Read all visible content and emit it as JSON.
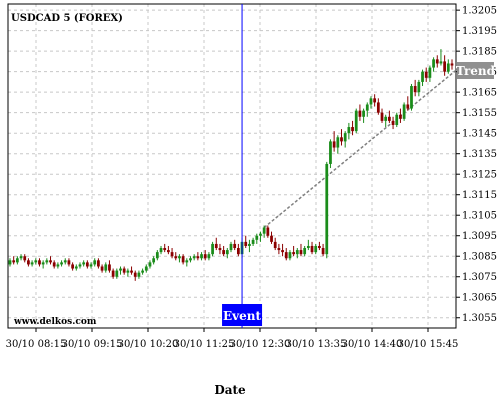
{
  "chart_data": {
    "type": "candlestick",
    "title": "USDCAD 5 (FOREX)",
    "xlabel": "Date",
    "watermark": "www.delkos.com",
    "event_label": "Event",
    "trend_label": "Trend",
    "ylim": [
      1.305,
      1.3208
    ],
    "y_ticks": [
      "1.3205",
      "1.3195",
      "1.3185",
      "1.3175",
      "1.3165",
      "1.3155",
      "1.3145",
      "1.3135",
      "1.3125",
      "1.3115",
      "1.3105",
      "1.3095",
      "1.3085",
      "1.3075",
      "1.3065",
      "1.3055"
    ],
    "x_ticks": [
      "30/10 08:15",
      "30/10 09:15",
      "30/10 10:20",
      "30/10 11:25",
      "30/10 12:30",
      "30/10 13:35",
      "30/10 14:40",
      "30/10 15:45"
    ],
    "event_bar_index": 63,
    "trend_line": {
      "from_index": 69,
      "from_value": 1.3099,
      "to_index": 120,
      "to_value": 1.3175
    },
    "colors": {
      "up": "#1a8c1a",
      "down": "#8b0000",
      "event": "#0000ff",
      "trend": "#808080",
      "trend_label_bg": "#909090"
    },
    "candles": [
      [
        1.3081,
        1.3084,
        1.308,
        1.3083
      ],
      [
        1.3083,
        1.3085,
        1.3081,
        1.3082
      ],
      [
        1.3082,
        1.3085,
        1.3081,
        1.3084
      ],
      [
        1.3084,
        1.3086,
        1.3083,
        1.3085
      ],
      [
        1.3085,
        1.3086,
        1.3082,
        1.3083
      ],
      [
        1.3083,
        1.3084,
        1.308,
        1.3081
      ],
      [
        1.3081,
        1.3083,
        1.308,
        1.3082
      ],
      [
        1.3082,
        1.3084,
        1.3081,
        1.3083
      ],
      [
        1.3083,
        1.3084,
        1.308,
        1.3081
      ],
      [
        1.3081,
        1.3083,
        1.3079,
        1.3082
      ],
      [
        1.3082,
        1.3084,
        1.3081,
        1.3083
      ],
      [
        1.3083,
        1.3085,
        1.3081,
        1.3082
      ],
      [
        1.3082,
        1.3083,
        1.3079,
        1.308
      ],
      [
        1.308,
        1.3082,
        1.3079,
        1.3081
      ],
      [
        1.3081,
        1.3083,
        1.308,
        1.3082
      ],
      [
        1.3082,
        1.3084,
        1.3081,
        1.3083
      ],
      [
        1.3083,
        1.3084,
        1.308,
        1.3081
      ],
      [
        1.3081,
        1.3082,
        1.3078,
        1.3079
      ],
      [
        1.3079,
        1.3081,
        1.3078,
        1.308
      ],
      [
        1.308,
        1.3082,
        1.3079,
        1.3081
      ],
      [
        1.3081,
        1.3083,
        1.308,
        1.3082
      ],
      [
        1.3082,
        1.3083,
        1.3079,
        1.308
      ],
      [
        1.308,
        1.3082,
        1.3079,
        1.3081
      ],
      [
        1.3081,
        1.3084,
        1.308,
        1.3083
      ],
      [
        1.3083,
        1.3084,
        1.3079,
        1.308
      ],
      [
        1.308,
        1.3081,
        1.3077,
        1.3078
      ],
      [
        1.3078,
        1.3082,
        1.3077,
        1.3081
      ],
      [
        1.3081,
        1.3083,
        1.3077,
        1.3078
      ],
      [
        1.3078,
        1.3079,
        1.3074,
        1.3075
      ],
      [
        1.3075,
        1.3079,
        1.3074,
        1.3078
      ],
      [
        1.3078,
        1.308,
        1.3076,
        1.3079
      ],
      [
        1.3079,
        1.308,
        1.3076,
        1.3077
      ],
      [
        1.3077,
        1.3079,
        1.3075,
        1.3078
      ],
      [
        1.3078,
        1.308,
        1.3076,
        1.3077
      ],
      [
        1.3077,
        1.3078,
        1.3073,
        1.3075
      ],
      [
        1.3075,
        1.3078,
        1.3074,
        1.3077
      ],
      [
        1.3077,
        1.3079,
        1.3076,
        1.3078
      ],
      [
        1.3078,
        1.3081,
        1.3077,
        1.308
      ],
      [
        1.308,
        1.3083,
        1.3079,
        1.3082
      ],
      [
        1.3082,
        1.3085,
        1.3081,
        1.3084
      ],
      [
        1.3084,
        1.3088,
        1.3083,
        1.3087
      ],
      [
        1.3087,
        1.309,
        1.3086,
        1.3089
      ],
      [
        1.3089,
        1.3091,
        1.3087,
        1.3088
      ],
      [
        1.3088,
        1.309,
        1.3086,
        1.3087
      ],
      [
        1.3087,
        1.3089,
        1.3084,
        1.3085
      ],
      [
        1.3085,
        1.3087,
        1.3083,
        1.3084
      ],
      [
        1.3084,
        1.3086,
        1.3082,
        1.3085
      ],
      [
        1.3085,
        1.3086,
        1.3081,
        1.3082
      ],
      [
        1.3082,
        1.3084,
        1.308,
        1.3083
      ],
      [
        1.3083,
        1.3085,
        1.3082,
        1.3084
      ],
      [
        1.3084,
        1.3086,
        1.3083,
        1.3085
      ],
      [
        1.3085,
        1.3087,
        1.3083,
        1.3084
      ],
      [
        1.3084,
        1.3087,
        1.3083,
        1.3086
      ],
      [
        1.3086,
        1.3088,
        1.3083,
        1.3084
      ],
      [
        1.3084,
        1.3087,
        1.3083,
        1.3086
      ],
      [
        1.3086,
        1.3092,
        1.3085,
        1.3091
      ],
      [
        1.3091,
        1.3094,
        1.3088,
        1.3089
      ],
      [
        1.3089,
        1.3091,
        1.3086,
        1.3088
      ],
      [
        1.3088,
        1.309,
        1.3085,
        1.3086
      ],
      [
        1.3086,
        1.3089,
        1.3084,
        1.3088
      ],
      [
        1.3088,
        1.3092,
        1.3087,
        1.3091
      ],
      [
        1.3091,
        1.3093,
        1.3088,
        1.3089
      ],
      [
        1.3089,
        1.3091,
        1.3085,
        1.3086
      ],
      [
        1.3086,
        1.3094,
        1.3084,
        1.3092
      ],
      [
        1.3092,
        1.3095,
        1.3089,
        1.309
      ],
      [
        1.309,
        1.3093,
        1.3087,
        1.3091
      ],
      [
        1.3091,
        1.3094,
        1.309,
        1.3093
      ],
      [
        1.3093,
        1.3096,
        1.3091,
        1.3095
      ],
      [
        1.3095,
        1.3097,
        1.3092,
        1.3096
      ],
      [
        1.3096,
        1.31,
        1.3094,
        1.3099
      ],
      [
        1.3099,
        1.31,
        1.3094,
        1.3095
      ],
      [
        1.3095,
        1.3097,
        1.3091,
        1.3092
      ],
      [
        1.3092,
        1.3094,
        1.3088,
        1.3089
      ],
      [
        1.3089,
        1.3091,
        1.3086,
        1.3088
      ],
      [
        1.3088,
        1.3091,
        1.3085,
        1.3087
      ],
      [
        1.3087,
        1.3089,
        1.3083,
        1.3084
      ],
      [
        1.3084,
        1.3088,
        1.3083,
        1.3087
      ],
      [
        1.3087,
        1.309,
        1.3085,
        1.3086
      ],
      [
        1.3086,
        1.3089,
        1.3084,
        1.3088
      ],
      [
        1.3088,
        1.3091,
        1.3085,
        1.3086
      ],
      [
        1.3086,
        1.309,
        1.3085,
        1.3089
      ],
      [
        1.3089,
        1.3093,
        1.3088,
        1.309
      ],
      [
        1.309,
        1.3092,
        1.3086,
        1.3087
      ],
      [
        1.3087,
        1.3091,
        1.3086,
        1.309
      ],
      [
        1.309,
        1.3092,
        1.3088,
        1.3089
      ],
      [
        1.3089,
        1.3091,
        1.3085,
        1.3086
      ],
      [
        1.3086,
        1.3131,
        1.3084,
        1.313
      ],
      [
        1.313,
        1.3142,
        1.3128,
        1.3141
      ],
      [
        1.3141,
        1.3146,
        1.3136,
        1.3138
      ],
      [
        1.3138,
        1.3144,
        1.3135,
        1.3143
      ],
      [
        1.3143,
        1.3147,
        1.3139,
        1.3141
      ],
      [
        1.3141,
        1.3146,
        1.3138,
        1.3145
      ],
      [
        1.3145,
        1.315,
        1.3142,
        1.3148
      ],
      [
        1.3148,
        1.3151,
        1.3144,
        1.3146
      ],
      [
        1.3146,
        1.3157,
        1.3145,
        1.3156
      ],
      [
        1.3156,
        1.3159,
        1.3151,
        1.3153
      ],
      [
        1.3153,
        1.3157,
        1.315,
        1.3156
      ],
      [
        1.3156,
        1.316,
        1.3153,
        1.3159
      ],
      [
        1.3159,
        1.3163,
        1.3157,
        1.3162
      ],
      [
        1.3162,
        1.3164,
        1.3158,
        1.316
      ],
      [
        1.316,
        1.3162,
        1.3154,
        1.3155
      ],
      [
        1.3155,
        1.3157,
        1.315,
        1.3151
      ],
      [
        1.3151,
        1.3154,
        1.3148,
        1.3153
      ],
      [
        1.3153,
        1.3156,
        1.315,
        1.3151
      ],
      [
        1.3151,
        1.3153,
        1.3147,
        1.3149
      ],
      [
        1.3149,
        1.3155,
        1.3148,
        1.3154
      ],
      [
        1.3154,
        1.3157,
        1.315,
        1.3152
      ],
      [
        1.3152,
        1.316,
        1.3151,
        1.3159
      ],
      [
        1.3159,
        1.3163,
        1.3156,
        1.3157
      ],
      [
        1.3157,
        1.3169,
        1.3156,
        1.3168
      ],
      [
        1.3168,
        1.3171,
        1.3163,
        1.3165
      ],
      [
        1.3165,
        1.3171,
        1.3163,
        1.317
      ],
      [
        1.317,
        1.3176,
        1.3168,
        1.3175
      ],
      [
        1.3175,
        1.3177,
        1.317,
        1.3172
      ],
      [
        1.3172,
        1.3178,
        1.317,
        1.3177
      ],
      [
        1.3177,
        1.3182,
        1.3175,
        1.3181
      ],
      [
        1.3181,
        1.3183,
        1.3177,
        1.3179
      ],
      [
        1.3179,
        1.3186,
        1.3178,
        1.318
      ],
      [
        1.318,
        1.3183,
        1.3173,
        1.3175
      ],
      [
        1.3175,
        1.3181,
        1.3174,
        1.3179
      ],
      [
        1.3179,
        1.3181,
        1.3176,
        1.3178
      ]
    ]
  }
}
